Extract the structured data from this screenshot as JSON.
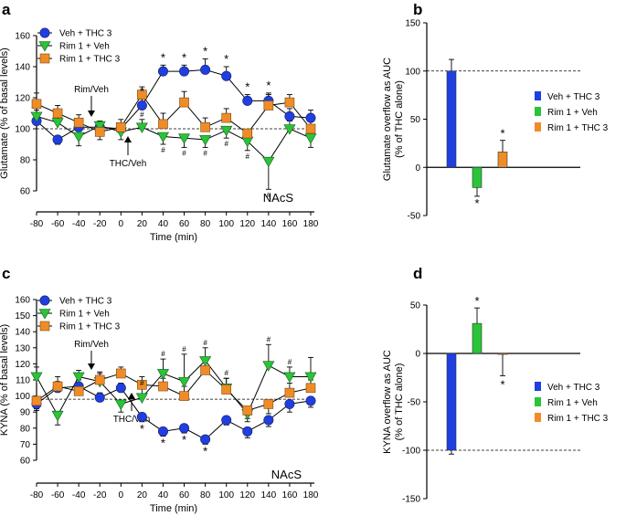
{
  "colors": {
    "veh_thc": "#1f3fe0",
    "rim_veh": "#29c437",
    "rim_thc": "#f08c28"
  },
  "panels": {
    "a": {
      "label": "a",
      "region": "NAcS",
      "annot_rim": "Rim/Veh",
      "annot_thc": "THC/Veh"
    },
    "b": {
      "label": "b"
    },
    "c": {
      "label": "c",
      "region": "NAcS",
      "annot_rim": "Rim/Veh",
      "annot_thc": "THC/Veh"
    },
    "d": {
      "label": "d"
    }
  },
  "chart_data": [
    {
      "id": "a",
      "type": "line",
      "ylabel": "Glutamate (% of basal levels)",
      "xlabel": "Time (min)",
      "ylim": [
        60,
        160
      ],
      "yticks": [
        "60",
        "80",
        "100",
        "120",
        "140",
        "160"
      ],
      "xlim": [
        -80,
        180
      ],
      "xticks": [
        "-80",
        "-60",
        "-40",
        "-20",
        "0",
        "20",
        "40",
        "60",
        "80",
        "100",
        "120",
        "140",
        "160",
        "180"
      ],
      "x": [
        -80,
        -60,
        -40,
        -20,
        0,
        20,
        40,
        60,
        80,
        100,
        120,
        140,
        160,
        180
      ],
      "baseline": 100,
      "series": [
        {
          "name": "Veh + THC 3",
          "marker": "circle",
          "color": "#1f3fe0",
          "values": [
            105,
            93,
            101,
            101,
            100,
            115,
            137,
            137,
            138,
            134,
            118,
            118,
            108,
            107
          ],
          "err": [
            3,
            3,
            4,
            3,
            2,
            4,
            4,
            4,
            7,
            6,
            4,
            5,
            5,
            5
          ]
        },
        {
          "name": "Rim 1 + Veh",
          "marker": "triangle",
          "color": "#29c437",
          "values": [
            108,
            104,
            95,
            102,
            98,
            101,
            95,
            94,
            93,
            99,
            92,
            79,
            100,
            94
          ],
          "err": [
            4,
            5,
            6,
            3,
            5,
            5,
            5,
            6,
            5,
            5,
            6,
            18,
            5,
            6
          ]
        },
        {
          "name": "Rim 1 + THC 3",
          "marker": "square",
          "color": "#f08c28",
          "values": [
            116,
            110,
            104,
            98,
            101,
            122,
            103,
            117,
            101,
            107,
            97,
            115,
            117,
            100
          ],
          "err": [
            7,
            5,
            5,
            5,
            5,
            5,
            7,
            7,
            6,
            6,
            5,
            7,
            5,
            6
          ]
        }
      ],
      "stars": [
        20,
        40,
        60,
        80,
        100,
        120,
        140
      ],
      "hashes": [
        20,
        40,
        60,
        80,
        100,
        120,
        140
      ]
    },
    {
      "id": "b",
      "type": "bar",
      "ylabel": "Glutamate overflow as AUC\n(% of THC alone)",
      "ylim": [
        -50,
        150
      ],
      "yticks": [
        "-50",
        "0",
        "50",
        "100",
        "150"
      ],
      "reference_lines": [
        0,
        100
      ],
      "categories": [
        "Veh + THC 3",
        "Rim 1 + Veh",
        "Rim 1 + THC 3"
      ],
      "values": [
        100,
        -21,
        16
      ],
      "err": [
        12,
        9,
        12
      ],
      "colors": [
        "#1f3fe0",
        "#29c437",
        "#f08c28"
      ],
      "stars": [
        "",
        "*",
        "*"
      ]
    },
    {
      "id": "c",
      "type": "line",
      "ylabel": "KYNA (% of basal levels)",
      "xlabel": "Time (min)",
      "ylim": [
        60,
        160
      ],
      "yticks": [
        "60",
        "70",
        "80",
        "90",
        "100",
        "110",
        "120",
        "130",
        "140",
        "150",
        "160"
      ],
      "xlim": [
        -80,
        180
      ],
      "xticks": [
        "-80",
        "-60",
        "-40",
        "-20",
        "0",
        "20",
        "40",
        "60",
        "80",
        "100",
        "120",
        "140",
        "160",
        "180"
      ],
      "x": [
        -80,
        -60,
        -40,
        -20,
        0,
        20,
        40,
        60,
        80,
        100,
        120,
        140,
        160,
        180
      ],
      "baseline": 98,
      "series": [
        {
          "name": "Veh + THC 3",
          "marker": "circle",
          "color": "#1f3fe0",
          "values": [
            95,
            105,
            106,
            99,
            105,
            87,
            78,
            80,
            73,
            85,
            78,
            85,
            95,
            97
          ],
          "err": [
            4,
            4,
            4,
            3,
            3,
            3,
            3,
            3,
            3,
            3,
            4,
            4,
            5,
            4
          ]
        },
        {
          "name": "Rim 1 + Veh",
          "marker": "triangle",
          "color": "#29c437",
          "values": [
            112,
            88,
            112,
            109,
            95,
            99,
            114,
            109,
            122,
            105,
            89,
            119,
            112,
            112
          ],
          "err": [
            6,
            6,
            4,
            5,
            5,
            6,
            9,
            17,
            8,
            6,
            5,
            13,
            6,
            12
          ]
        },
        {
          "name": "Rim 1 + THC 3",
          "marker": "square",
          "color": "#f08c28",
          "values": [
            97,
            106,
            103,
            110,
            114,
            107,
            106,
            100,
            116,
            104,
            91,
            95,
            102,
            105
          ],
          "err": [
            5,
            6,
            5,
            5,
            4,
            5,
            5,
            6,
            7,
            7,
            5,
            6,
            6,
            5
          ]
        }
      ],
      "stars": [
        20,
        40,
        60,
        80
      ],
      "hashes": [
        20,
        40,
        60,
        80,
        100,
        140,
        160
      ]
    },
    {
      "id": "d",
      "type": "bar",
      "ylabel": "KYNA overflow as AUC\n(% of THC alone)",
      "ylim": [
        -150,
        50
      ],
      "yticks": [
        "-150",
        "-100",
        "-50",
        "0",
        "50"
      ],
      "reference_lines": [
        0,
        -100
      ],
      "categories": [
        "Veh + THC 3",
        "Rim 1 + Veh",
        "Rim 1 + THC 3"
      ],
      "values": [
        -100,
        31,
        -1
      ],
      "err": [
        4,
        16,
        22
      ],
      "colors": [
        "#1f3fe0",
        "#29c437",
        "#f08c28"
      ],
      "stars": [
        "",
        "*",
        "*"
      ]
    }
  ]
}
